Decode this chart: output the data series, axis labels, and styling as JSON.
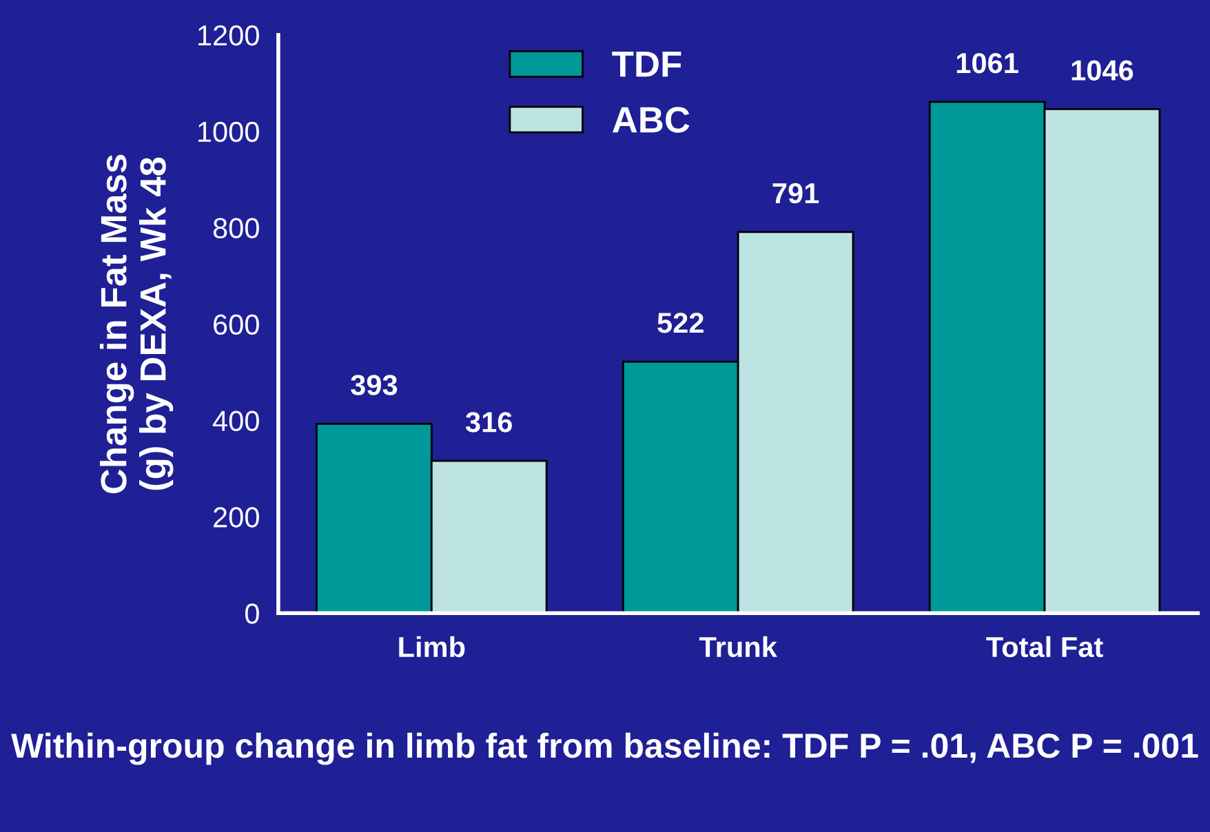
{
  "chart_data": {
    "type": "bar",
    "categories": [
      "Limb",
      "Trunk",
      "Total Fat"
    ],
    "series": [
      {
        "name": "TDF",
        "color": "#009999",
        "values": [
          393,
          522,
          1061
        ]
      },
      {
        "name": "ABC",
        "color": "#bde3e3",
        "values": [
          316,
          791,
          1046
        ]
      }
    ],
    "ylabel": "Change in Fat Mass\n(g) by DEXA, Wk 48",
    "ylim": [
      0,
      1200
    ],
    "yticks": [
      0,
      200,
      400,
      600,
      800,
      1000,
      1200
    ],
    "data_labels": true,
    "grid": false,
    "legend": "top",
    "annotations": [
      "Within-group change in limb fat from baseline: TDF P = .01, ABC P = .001"
    ]
  }
}
